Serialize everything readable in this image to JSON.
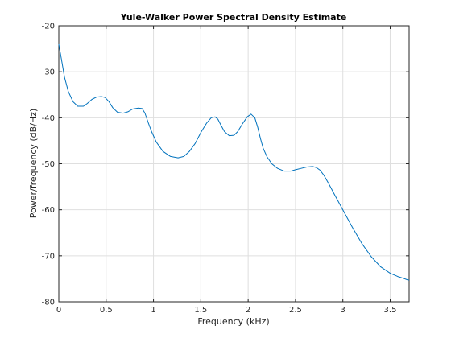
{
  "chart_data": {
    "type": "line",
    "title": "Yule-Walker Power Spectral Density Estimate",
    "xlabel": "Frequency (kHz)",
    "ylabel": "Power/frequency (dB/Hz)",
    "xlim": [
      0,
      3.7
    ],
    "ylim": [
      -80,
      -20
    ],
    "xticks": [
      0,
      0.5,
      1,
      1.5,
      2,
      2.5,
      3,
      3.5
    ],
    "xtick_labels": [
      "0",
      "0.5",
      "1",
      "1.5",
      "2",
      "2.5",
      "3",
      "3.5"
    ],
    "yticks": [
      -80,
      -70,
      -60,
      -50,
      -40,
      -30,
      -20
    ],
    "ytick_labels": [
      "-80",
      "-70",
      "-60",
      "-50",
      "-40",
      "-30",
      "-20"
    ],
    "grid": true,
    "series": [
      {
        "color": "#0072bd",
        "x": [
          0,
          0.03,
          0.06,
          0.1,
          0.15,
          0.2,
          0.26,
          0.3,
          0.35,
          0.4,
          0.45,
          0.49,
          0.53,
          0.57,
          0.62,
          0.68,
          0.73,
          0.78,
          0.84,
          0.88,
          0.91,
          0.94,
          0.98,
          1.03,
          1.1,
          1.18,
          1.26,
          1.32,
          1.38,
          1.44,
          1.5,
          1.56,
          1.61,
          1.65,
          1.68,
          1.71,
          1.75,
          1.8,
          1.85,
          1.89,
          1.94,
          1.99,
          2.03,
          2.07,
          2.1,
          2.13,
          2.16,
          2.2,
          2.25,
          2.31,
          2.38,
          2.45,
          2.5,
          2.56,
          2.62,
          2.68,
          2.72,
          2.76,
          2.8,
          2.85,
          2.92,
          3.0,
          3.1,
          3.2,
          3.3,
          3.4,
          3.5,
          3.58,
          3.64,
          3.68,
          3.7
        ],
        "y": [
          -24,
          -27.5,
          -31.2,
          -34.3,
          -36.5,
          -37.5,
          -37.5,
          -36.9,
          -36.0,
          -35.5,
          -35.4,
          -35.6,
          -36.5,
          -37.8,
          -38.8,
          -39.0,
          -38.7,
          -38.1,
          -37.9,
          -38.0,
          -39.0,
          -40.8,
          -43.0,
          -45.3,
          -47.3,
          -48.4,
          -48.7,
          -48.4,
          -47.3,
          -45.6,
          -43.2,
          -41.2,
          -40.0,
          -39.8,
          -40.3,
          -41.5,
          -43.0,
          -43.9,
          -43.8,
          -43.0,
          -41.3,
          -39.8,
          -39.2,
          -40.0,
          -42.0,
          -44.5,
          -46.7,
          -48.5,
          -50.0,
          -51.0,
          -51.6,
          -51.6,
          -51.3,
          -51.0,
          -50.7,
          -50.6,
          -50.8,
          -51.4,
          -52.5,
          -54.3,
          -57.0,
          -60.0,
          -63.8,
          -67.3,
          -70.2,
          -72.4,
          -73.8,
          -74.5,
          -74.9,
          -75.2,
          -75.3
        ]
      }
    ]
  }
}
